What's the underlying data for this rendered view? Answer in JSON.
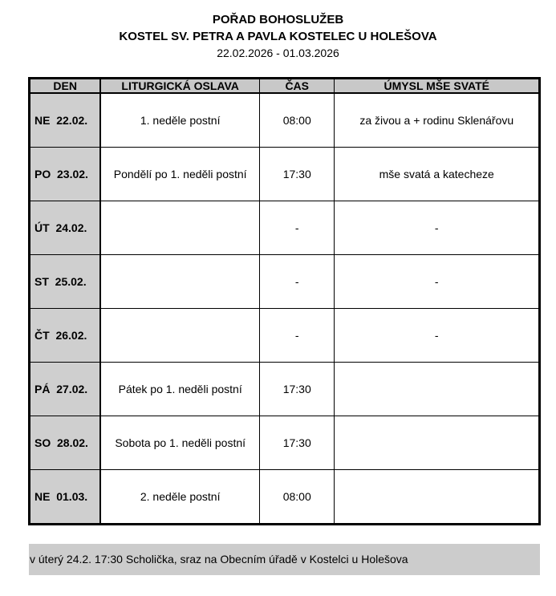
{
  "header": {
    "title": "POŘAD BOHOSLUŽEB",
    "subtitle": "KOSTEL SV. PETRA A PAVLA KOSTELEC U HOLEŠOVA",
    "date_range": "22.02.2026 - 01.03.2026"
  },
  "table": {
    "columns": [
      "DEN",
      "LITURGICKÁ OSLAVA",
      "ČAS",
      "ÚMYSL MŠE SVATÉ"
    ],
    "rows": [
      {
        "day": "NE  22.02.",
        "feast": "1. neděle postní",
        "time": "08:00",
        "intention": "za živou a + rodinu Sklenářovu"
      },
      {
        "day": "PO  23.02.",
        "feast": "Pondělí po 1. neděli postní",
        "time": "17:30",
        "intention": "mše svatá a katecheze"
      },
      {
        "day": "ÚT  24.02.",
        "feast": "",
        "time": "-",
        "intention": "-"
      },
      {
        "day": "ST  25.02.",
        "feast": "",
        "time": "-",
        "intention": "-"
      },
      {
        "day": "ČT  26.02.",
        "feast": "",
        "time": "-",
        "intention": "-"
      },
      {
        "day": "PÁ  27.02.",
        "feast": "Pátek po 1. neděli postní",
        "time": "17:30",
        "intention": ""
      },
      {
        "day": "SO  28.02.",
        "feast": "Sobota po 1. neděli postní",
        "time": "17:30",
        "intention": ""
      },
      {
        "day": "NE  01.03.",
        "feast": "2. neděle postní",
        "time": "08:00",
        "intention": ""
      }
    ]
  },
  "note": "v úterý 24.2. 17:30 Scholička, sraz na Obecním úřadě v Kostelci u Holešova"
}
